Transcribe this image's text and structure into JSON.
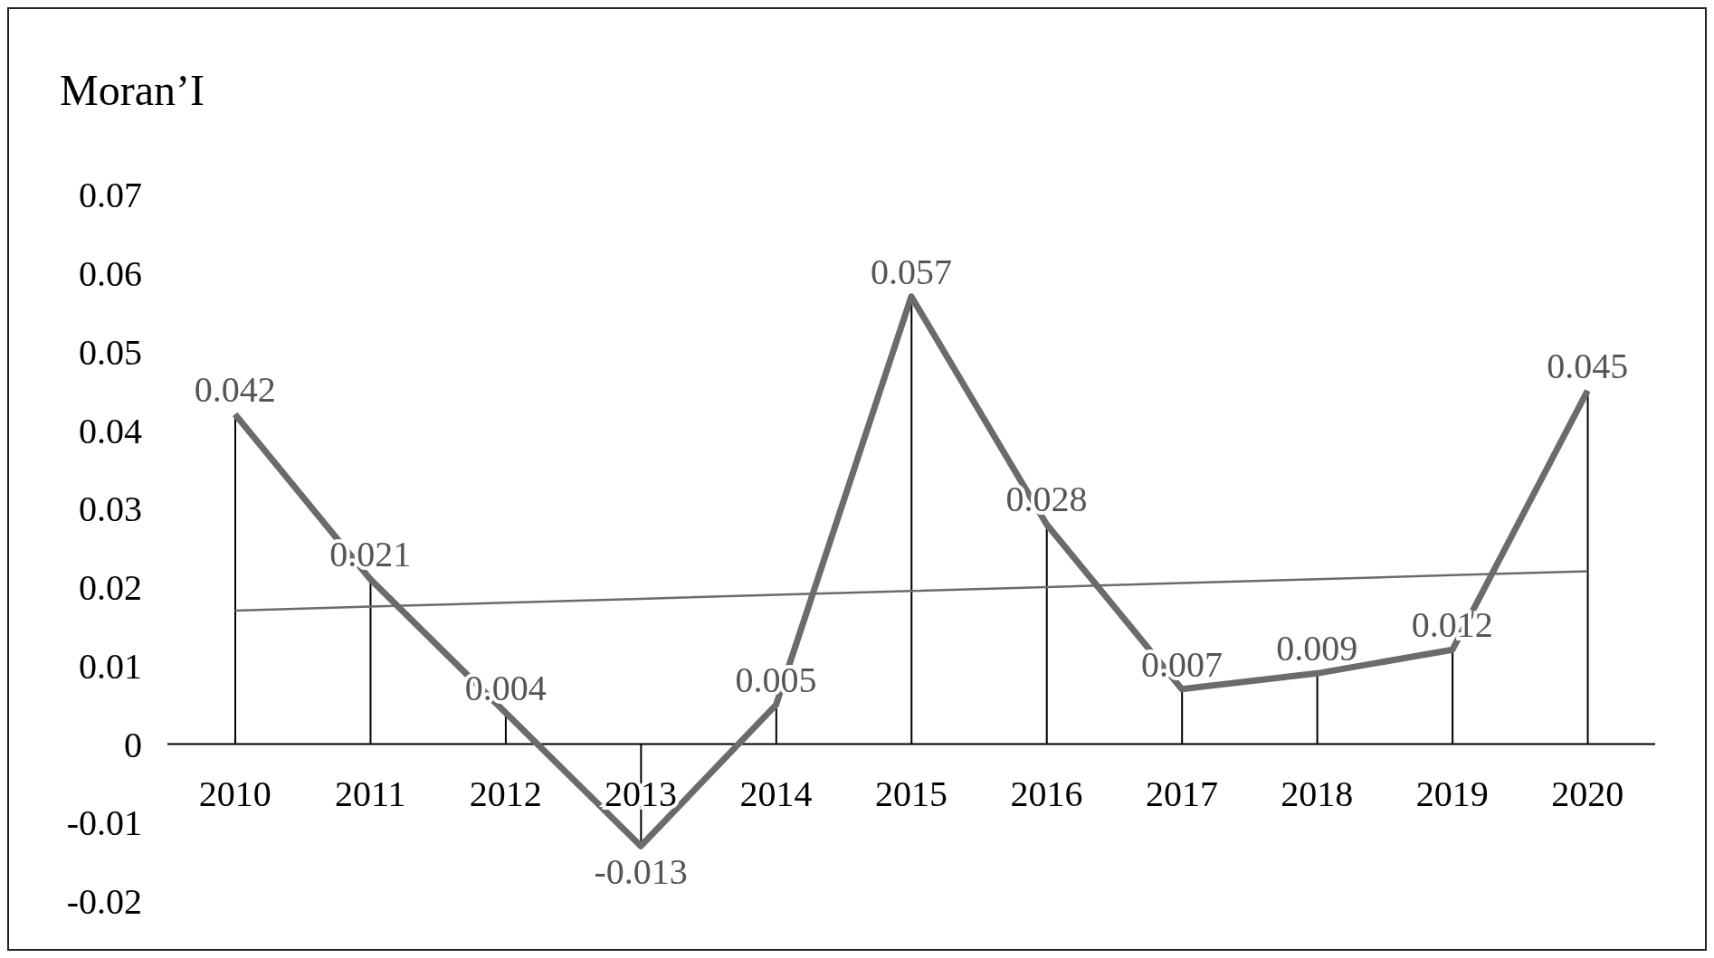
{
  "chart_data": {
    "type": "line",
    "ylabel": "Moran’I",
    "categories": [
      "2010",
      "2011",
      "2012",
      "2013",
      "2014",
      "2015",
      "2016",
      "2017",
      "2018",
      "2019",
      "2020"
    ],
    "series": [
      {
        "type": "bar",
        "color": "#000000",
        "values": [
          0.042,
          0.021,
          0.004,
          -0.013,
          0.005,
          0.057,
          0.028,
          0.007,
          0.009,
          0.012,
          0.045
        ]
      },
      {
        "color": "#6b6b6b",
        "values": [
          0.042,
          0.021,
          0.004,
          -0.013,
          0.005,
          0.057,
          0.028,
          0.007,
          0.009,
          0.012,
          0.045
        ],
        "value_labels": [
          "0.042",
          "0.021",
          "0.004",
          "-0.013",
          "0.005",
          "0.057",
          "0.028",
          "0.007",
          "0.009",
          "0.012",
          "0.045"
        ]
      },
      {
        "type": "line",
        "color": "#6b6b6b",
        "values": [
          0.017,
          0.0175,
          0.018,
          0.0185,
          0.019,
          0.0195,
          0.02,
          0.0205,
          0.021,
          0.0215,
          0.022
        ]
      }
    ],
    "ylim": [
      -0.02,
      0.07
    ],
    "yticks": [
      -0.02,
      -0.01,
      0,
      0.01,
      0.02,
      0.03,
      0.04,
      0.05,
      0.06,
      0.07
    ],
    "grid": false,
    "legend": false,
    "marker": "none"
  }
}
